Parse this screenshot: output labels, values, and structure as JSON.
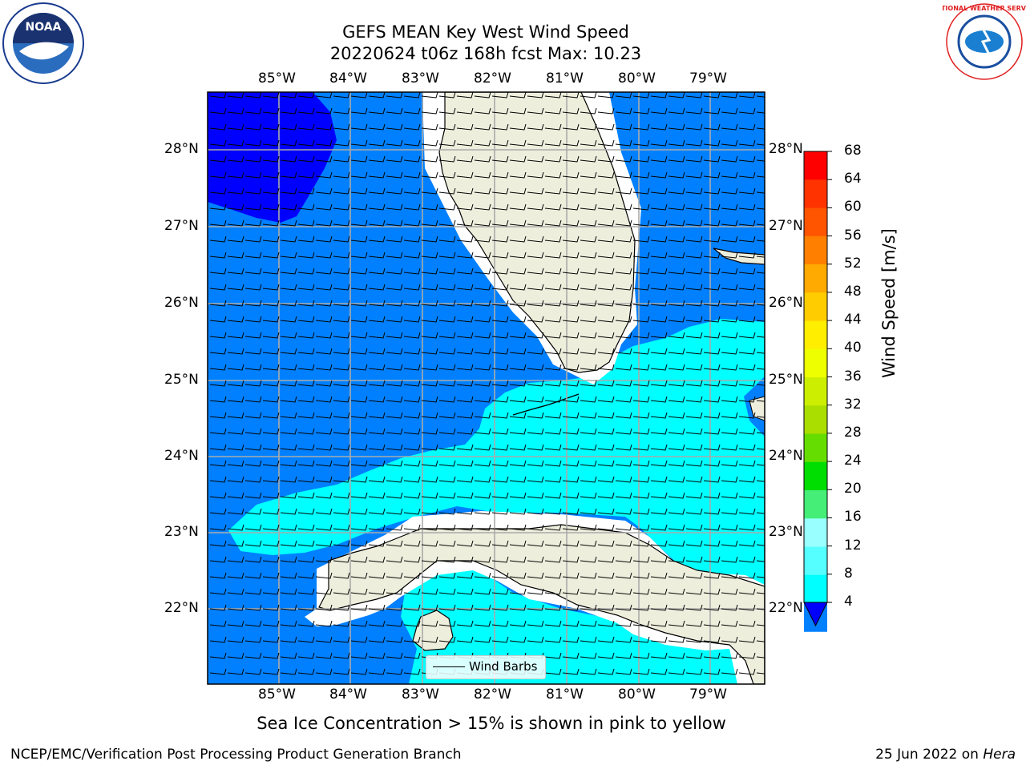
{
  "title_line1": "GEFS MEAN Key West Wind Speed",
  "title_line2": "20220624 t06z 168h fcst   Max: 10.23",
  "logos": {
    "left": "noaa-logo",
    "right": "nws-logo",
    "left_text": "NOAA",
    "right_text": "NATIONAL WEATHER SERVICE"
  },
  "lon_ticks": [
    "85°W",
    "84°W",
    "83°W",
    "82°W",
    "81°W",
    "80°W",
    "79°W"
  ],
  "lat_ticks": [
    "28°N",
    "27°N",
    "26°N",
    "25°N",
    "24°N",
    "23°N",
    "22°N"
  ],
  "colorbar": {
    "label": "Wind Speed [m/s]",
    "ticks": [
      "68",
      "64",
      "60",
      "56",
      "52",
      "48",
      "44",
      "40",
      "36",
      "32",
      "28",
      "24",
      "20",
      "16",
      "12",
      "8",
      "4"
    ],
    "colors": [
      "#ff0000",
      "#ff3300",
      "#ff5500",
      "#ff8000",
      "#ffaa00",
      "#ffcc00",
      "#ffee00",
      "#eeff00",
      "#ccee00",
      "#aadd00",
      "#66dd00",
      "#00dd00",
      "#44ee77",
      "#99ffff",
      "#55ffff",
      "#00ffff",
      "#0080ff"
    ],
    "under_color": "#0000ff"
  },
  "legend_label": "Wind Barbs",
  "caption": "Sea Ice Concentration > 15% is shown in pink to yellow",
  "footer_left": "NCEP/EMC/Verification Post Processing Product Generation Branch",
  "footer_date": "25 Jun 2022 on ",
  "footer_host": "Hera",
  "colors": {
    "deep": "#0000ff",
    "mid": "#0080ff",
    "light": "#00ffff",
    "land": "#eeeedd"
  }
}
